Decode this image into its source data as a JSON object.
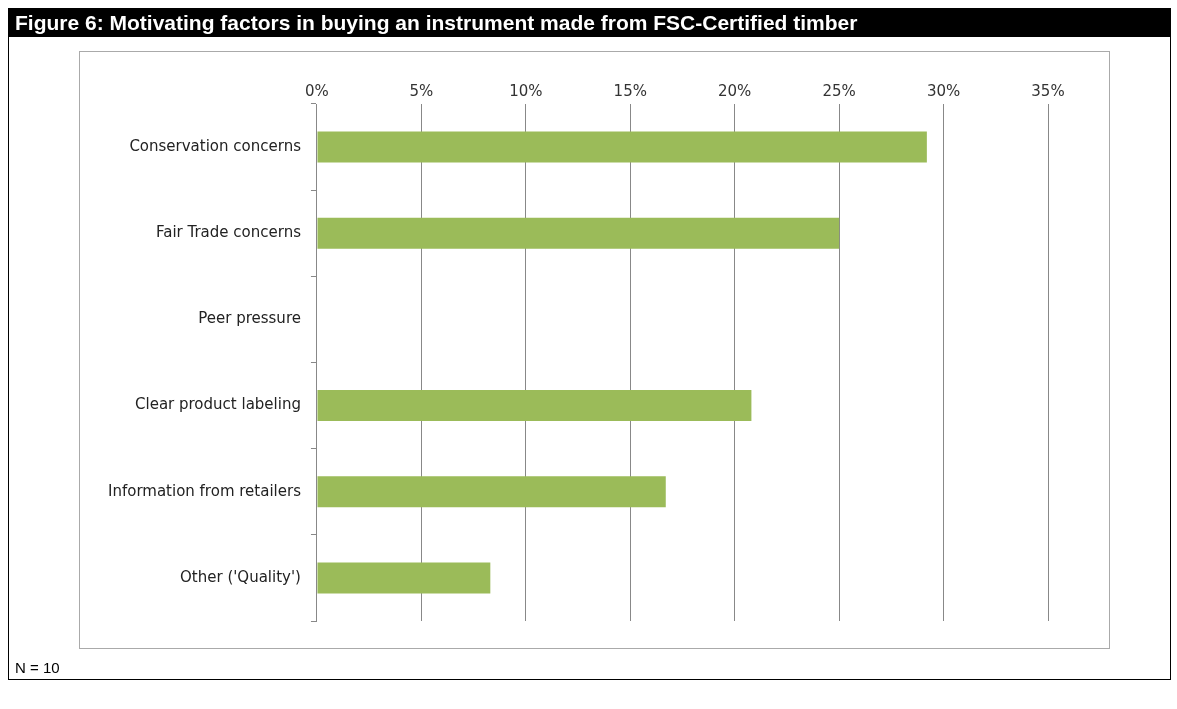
{
  "chart_data": {
    "type": "bar",
    "orientation": "horizontal",
    "title": "Figure 6: Motivating factors in buying an instrument made from FSC-Certified timber",
    "categories": [
      "Conservation concerns",
      "Fair Trade concerns",
      "Peer pressure",
      "Clear product labeling",
      "Information from retailers",
      "Other ('Quality')"
    ],
    "values": [
      29.2,
      25,
      0,
      20.8,
      16.7,
      8.3
    ],
    "color": "#9bbb59",
    "xlim": [
      0,
      35
    ],
    "xticks": [
      {
        "value": 0,
        "label": "0%"
      },
      {
        "value": 5,
        "label": "5%"
      },
      {
        "value": 10,
        "label": "10%"
      },
      {
        "value": 15,
        "label": "15%"
      },
      {
        "value": 20,
        "label": "20%"
      },
      {
        "value": 25,
        "label": "25%"
      },
      {
        "value": 30,
        "label": "30%"
      },
      {
        "value": 35,
        "label": "35%"
      }
    ],
    "grid": "x",
    "annotations": [
      "N = 10"
    ]
  }
}
